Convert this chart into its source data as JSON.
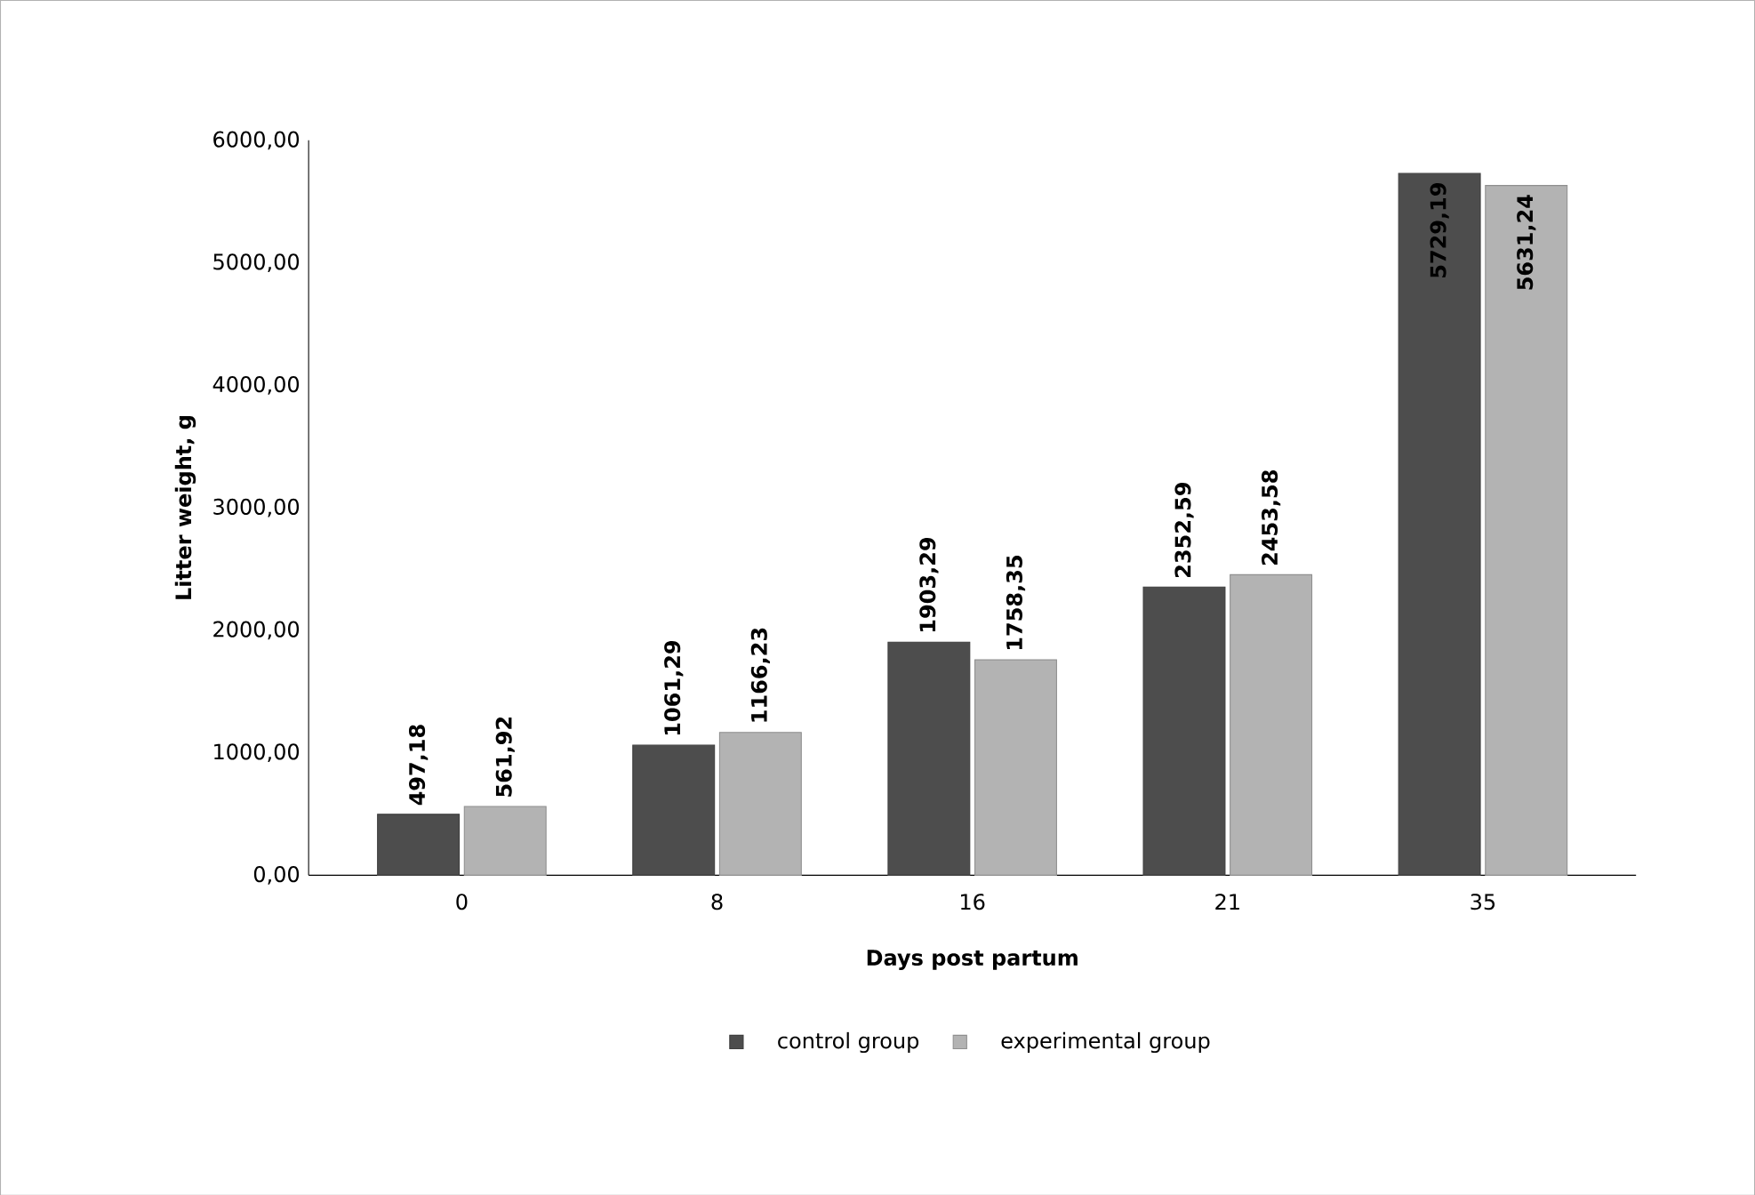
{
  "chart_data": {
    "type": "bar",
    "xlabel": "Days post partum",
    "ylabel": "Litter weight, g",
    "categories": [
      "0",
      "8",
      "16",
      "21",
      "35"
    ],
    "series": [
      {
        "name": "control group",
        "color": "#4d4d4d",
        "values": [
          497.18,
          1061.29,
          1903.29,
          2352.59,
          5729.19
        ],
        "value_labels": [
          "497,18",
          "1061,29",
          "1903,29",
          "2352,59",
          "5729,19"
        ]
      },
      {
        "name": "experimental group",
        "color": "#b3b3b3",
        "values": [
          561.92,
          1166.23,
          1758.35,
          2453.58,
          5631.24
        ],
        "value_labels": [
          "561,92",
          "1166,23",
          "1758,35",
          "2453,58",
          "5631,24"
        ]
      }
    ],
    "ylim": [
      0,
      6000
    ],
    "yticks": [
      {
        "value": 0,
        "label": "0,00"
      },
      {
        "value": 1000,
        "label": "1000,00"
      },
      {
        "value": 2000,
        "label": "2000,00"
      },
      {
        "value": 3000,
        "label": "3000,00"
      },
      {
        "value": 4000,
        "label": "4000,00"
      },
      {
        "value": 5000,
        "label": "5000,00"
      },
      {
        "value": 6000,
        "label": "6000,00"
      }
    ],
    "legend": "bottom",
    "grid": false
  }
}
